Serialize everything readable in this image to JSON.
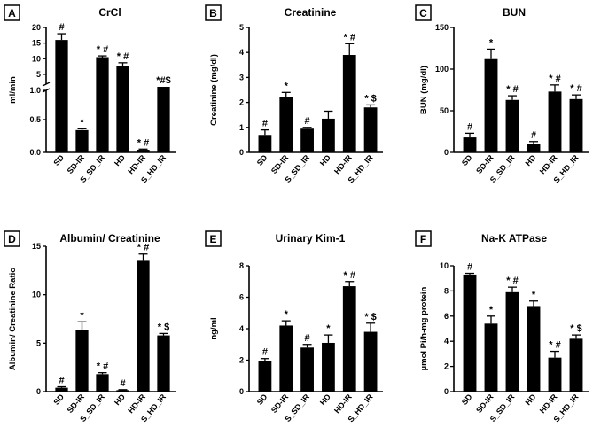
{
  "chart_data": [
    {
      "letter": "A",
      "type": "bar",
      "title": "CrCl",
      "ylabel": "ml/min",
      "categories": [
        "SD",
        "SD-IR",
        "S_SD_IR",
        "HD",
        "HD-IR",
        "S_HD_IR"
      ],
      "values": [
        16.0,
        0.34,
        10.5,
        7.7,
        0.04,
        1.0
      ],
      "errors": [
        2.0,
        0.02,
        0.4,
        1.0,
        0.01,
        0.0
      ],
      "annotations": [
        "#",
        "*",
        "* #",
        "* #",
        "* #",
        "*#$"
      ],
      "axis_break": {
        "lower": [
          0,
          1.0
        ],
        "upper": [
          1.0,
          20
        ]
      },
      "yticks_lower": [
        "0.0",
        "0.5",
        "1.0"
      ],
      "yticks_upper": [
        "5",
        "10",
        "15",
        "20"
      ]
    },
    {
      "letter": "B",
      "type": "bar",
      "title": "Creatinine",
      "ylabel": "Creatinine (mg/dl)",
      "categories": [
        "SD",
        "SD-IR",
        "S_SD_IR",
        "HD",
        "HD-IR",
        "S_HD_IR"
      ],
      "values": [
        0.7,
        2.2,
        0.95,
        1.35,
        3.9,
        1.8
      ],
      "errors": [
        0.2,
        0.2,
        0.05,
        0.3,
        0.45,
        0.1
      ],
      "annotations": [
        "#",
        "*",
        "#",
        "",
        "* #",
        "* $"
      ],
      "ylim": [
        0,
        5
      ],
      "yticks": [
        "0",
        "1",
        "2",
        "3",
        "4",
        "5"
      ]
    },
    {
      "letter": "C",
      "type": "bar",
      "title": "BUN",
      "ylabel": "BUN (mg/dl)",
      "categories": [
        "SD",
        "SD-IR",
        "S_SD_IR",
        "HD",
        "HD-IR",
        "S_HD_IR"
      ],
      "values": [
        18,
        112,
        63,
        10,
        73,
        64
      ],
      "errors": [
        5,
        12,
        5,
        3,
        8,
        5
      ],
      "annotations": [
        "#",
        "*",
        "* #",
        "#",
        "* #",
        "* #"
      ],
      "ylim": [
        0,
        150
      ],
      "yticks": [
        "0",
        "50",
        "100",
        "150"
      ]
    },
    {
      "letter": "D",
      "type": "bar",
      "title": "Albumin/ Creatinine",
      "ylabel": "Albumin/ Creatinine Ratio",
      "categories": [
        "SD",
        "SD-IR",
        "S_SD_IR",
        "HD",
        "HD-IR",
        "S_HD_IR"
      ],
      "values": [
        0.4,
        6.4,
        1.8,
        0.15,
        13.5,
        5.8
      ],
      "errors": [
        0.1,
        0.8,
        0.15,
        0.05,
        0.7,
        0.2
      ],
      "annotations": [
        "#",
        "*",
        "* #",
        "#",
        "* #",
        "* $"
      ],
      "ylim": [
        0,
        15
      ],
      "yticks": [
        "0",
        "5",
        "10",
        "15"
      ]
    },
    {
      "letter": "E",
      "type": "bar",
      "title": "Urinary Kim-1",
      "ylabel": "ng/ml",
      "categories": [
        "SD",
        "SD-IR",
        "S_SD_IR",
        "HD",
        "HD-IR",
        "S_HD_IR"
      ],
      "values": [
        1.95,
        4.2,
        2.8,
        3.1,
        6.7,
        3.8
      ],
      "errors": [
        0.15,
        0.3,
        0.2,
        0.5,
        0.3,
        0.55
      ],
      "annotations": [
        "#",
        "*",
        "#",
        "*",
        "* #",
        "* $"
      ],
      "ylim": [
        0,
        8
      ],
      "yticks": [
        "0",
        "2",
        "4",
        "6",
        "8"
      ]
    },
    {
      "letter": "F",
      "type": "bar",
      "title": "Na-K ATPase",
      "ylabel": "µmol Pi/h-mg protein",
      "categories": [
        "SD",
        "SD-IR",
        "S_SD_IR",
        "HD",
        "HD-IR",
        "S_HD_IR"
      ],
      "values": [
        9.3,
        5.4,
        7.9,
        6.8,
        2.7,
        4.2
      ],
      "errors": [
        0.1,
        0.6,
        0.4,
        0.4,
        0.5,
        0.3
      ],
      "annotations": [
        "#",
        "*",
        "* #",
        "*",
        "* #",
        "* $"
      ],
      "ylim": [
        0,
        10
      ],
      "yticks": [
        "0",
        "2",
        "4",
        "6",
        "8",
        "10"
      ]
    }
  ]
}
